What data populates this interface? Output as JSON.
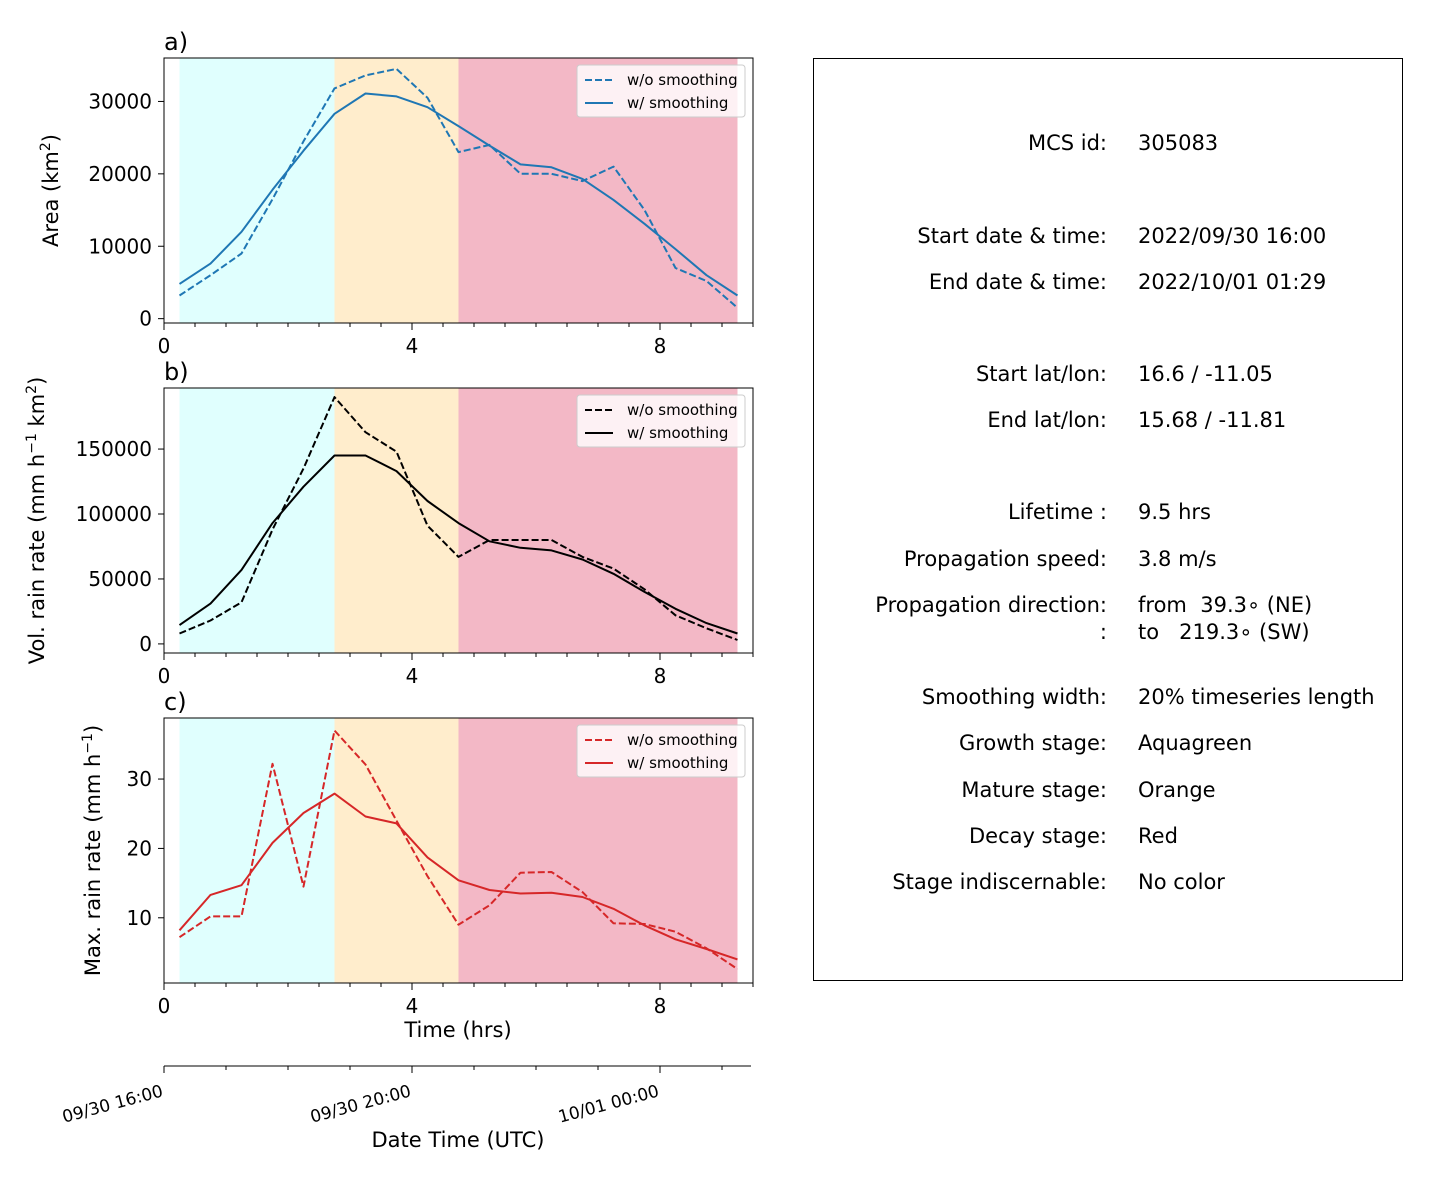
{
  "panels": [
    {
      "id": "a",
      "panel_label": "a)",
      "ylabel_main": "Area  (km",
      "ylabel_sup": "2",
      "ylabel_end": ")",
      "color": "#1f77b4",
      "legend": [
        "w/o smoothing",
        "w/ smoothing"
      ],
      "yticks": [
        "0",
        "10000",
        "20000",
        "30000"
      ],
      "xticks": [
        "0",
        "4",
        "8"
      ]
    },
    {
      "id": "b",
      "panel_label": "b)",
      "ylabel_main": "Vol. rain rate (mm h",
      "ylabel_sup": "−1",
      "ylabel_mid": " km",
      "ylabel_sup2": "2",
      "ylabel_end": ")",
      "color": "#000000",
      "legend": [
        "w/o smoothing",
        "w/ smoothing"
      ],
      "yticks": [
        "0",
        "50000",
        "100000",
        "150000"
      ],
      "xticks": [
        "0",
        "4",
        "8"
      ]
    },
    {
      "id": "c",
      "panel_label": "c)",
      "ylabel_main": "Max. rain rate  (mm h",
      "ylabel_sup": "−1",
      "ylabel_end": ")",
      "color": "#d62728",
      "legend": [
        "w/o smoothing",
        "w/ smoothing"
      ],
      "yticks": [
        "10",
        "20",
        "30"
      ],
      "xticks": [
        "0",
        "4",
        "8"
      ],
      "xlabel": "Time (hrs)"
    }
  ],
  "date_axis": {
    "ticks": [
      "09/30 16:00",
      "09/30 20:00",
      "10/01 00:00"
    ],
    "label": "Date Time (UTC)"
  },
  "stage_colors": {
    "growth": "#e0fffe",
    "mature": "#ffedcc",
    "decay": "#f3b8c6"
  },
  "chart_data": [
    {
      "type": "line",
      "panel": "a",
      "xlabel": "",
      "ylabel": "Area (km2)",
      "xlim": [
        0,
        9.5
      ],
      "ylim": [
        -600,
        36000
      ],
      "stages": [
        {
          "name": "Growth stage",
          "x0": 0.25,
          "x1": 2.75
        },
        {
          "name": "Mature stage",
          "x0": 2.75,
          "x1": 4.75
        },
        {
          "name": "Decay stage",
          "x0": 4.75,
          "x1": 9.25
        }
      ],
      "x": [
        0.25,
        0.75,
        1.25,
        1.75,
        2.25,
        2.75,
        3.25,
        3.75,
        4.25,
        4.75,
        5.25,
        5.75,
        6.25,
        6.75,
        7.25,
        7.75,
        8.25,
        8.75,
        9.25
      ],
      "series": [
        {
          "name": "w/o smoothing",
          "style": "dashed",
          "values": [
            3200,
            6000,
            9000,
            16500,
            24500,
            31800,
            33600,
            34500,
            30500,
            23000,
            24000,
            20000,
            20000,
            19000,
            21000,
            15000,
            7000,
            5200,
            1500
          ]
        },
        {
          "name": "w/ smoothing",
          "style": "solid",
          "values": [
            4800,
            7600,
            12000,
            17800,
            23200,
            28300,
            31100,
            30700,
            29200,
            26600,
            23900,
            21300,
            20900,
            19300,
            16400,
            13100,
            9600,
            6000,
            3200
          ]
        }
      ]
    },
    {
      "type": "line",
      "panel": "b",
      "xlabel": "",
      "ylabel": "Vol. rain rate (mm h-1 km2)",
      "xlim": [
        0,
        9.5
      ],
      "ylim": [
        -7000,
        197000
      ],
      "stages": [
        {
          "name": "Growth stage",
          "x0": 0.25,
          "x1": 2.75
        },
        {
          "name": "Mature stage",
          "x0": 2.75,
          "x1": 4.75
        },
        {
          "name": "Decay stage",
          "x0": 4.75,
          "x1": 9.25
        }
      ],
      "x": [
        0.25,
        0.75,
        1.25,
        1.75,
        2.25,
        2.75,
        3.25,
        3.75,
        4.25,
        4.75,
        5.25,
        5.75,
        6.25,
        6.75,
        7.25,
        7.75,
        8.25,
        8.75,
        9.25
      ],
      "series": [
        {
          "name": "w/o smoothing",
          "style": "dashed",
          "values": [
            8000,
            18000,
            32000,
            88000,
            135000,
            190000,
            163000,
            148000,
            91000,
            67000,
            80000,
            80000,
            80000,
            67000,
            58000,
            42000,
            22000,
            12000,
            3000
          ]
        },
        {
          "name": "w/ smoothing",
          "style": "solid",
          "values": [
            14500,
            31000,
            57000,
            93000,
            121000,
            145000,
            145000,
            133000,
            110000,
            93000,
            79000,
            74000,
            72000,
            65000,
            54000,
            40000,
            27000,
            16000,
            8000
          ]
        }
      ]
    },
    {
      "type": "line",
      "panel": "c",
      "xlabel": "Time (hrs)",
      "ylabel": "Max. rain rate (mm h-1)",
      "xlim": [
        0,
        9.5
      ],
      "ylim": [
        0.6,
        38.8
      ],
      "stages": [
        {
          "name": "Growth stage",
          "x0": 0.25,
          "x1": 2.75
        },
        {
          "name": "Mature stage",
          "x0": 2.75,
          "x1": 4.75
        },
        {
          "name": "Decay stage",
          "x0": 4.75,
          "x1": 9.25
        }
      ],
      "x": [
        0.25,
        0.75,
        1.25,
        1.75,
        2.25,
        2.75,
        3.25,
        3.75,
        4.25,
        4.75,
        5.25,
        5.75,
        6.25,
        6.75,
        7.25,
        7.75,
        8.25,
        8.75,
        9.25
      ],
      "series": [
        {
          "name": "w/o smoothing",
          "style": "dashed",
          "values": [
            7.2,
            10.2,
            10.2,
            32.2,
            14.5,
            37.0,
            32.1,
            24.0,
            16.0,
            9.0,
            11.8,
            16.5,
            16.6,
            13.7,
            9.2,
            9.1,
            8.0,
            5.6,
            2.6
          ]
        },
        {
          "name": "w/ smoothing",
          "style": "solid",
          "values": [
            8.2,
            13.3,
            14.7,
            20.8,
            25.1,
            27.9,
            24.6,
            23.6,
            18.7,
            15.4,
            14.0,
            13.5,
            13.6,
            13.0,
            11.3,
            8.9,
            6.9,
            5.5,
            4.0
          ]
        }
      ]
    }
  ],
  "info": [
    {
      "label": "MCS id:",
      "value": "305083"
    },
    {
      "label": "Start date & time:",
      "value": "2022/09/30 16:00"
    },
    {
      "label": "End date & time:",
      "value": "2022/10/01 01:29"
    },
    {
      "label": "Start lat/lon:",
      "value": "16.6 / -11.05"
    },
    {
      "label": "End lat/lon:",
      "value": "15.68 / -11.81"
    },
    {
      "label": "Lifetime :",
      "value": "9.5 hrs"
    },
    {
      "label": "Propagation speed:",
      "value": "3.8 m/s"
    },
    {
      "label": "Propagation direction:",
      "value": "from  39.3∘ (NE)"
    },
    {
      "label": ":",
      "value": "to   219.3∘ (SW)"
    },
    {
      "label": "Smoothing width:",
      "value": "20% timeseries length"
    },
    {
      "label": "Growth stage:",
      "value": "Aquagreen"
    },
    {
      "label": "Mature stage:",
      "value": "Orange"
    },
    {
      "label": "Decay stage:",
      "value": "Red"
    },
    {
      "label": "Stage indiscernable:",
      "value": "No color"
    }
  ]
}
